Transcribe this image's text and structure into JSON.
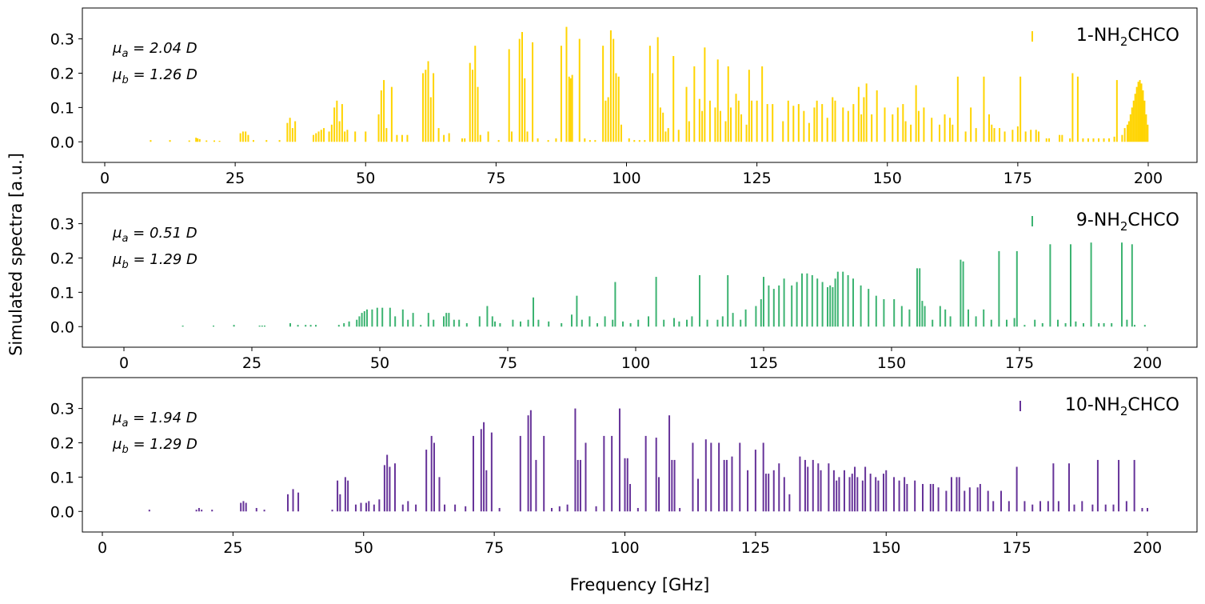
{
  "figure": {
    "ylabel": "Simulated spectra [a.u.]",
    "xlabel": "Frequency [GHz]"
  },
  "chart_data": [
    {
      "type": "bar",
      "name": "panel-1",
      "legend": {
        "prefix": "1-NH",
        "sub": "2",
        "suffix": "CHCO"
      },
      "color": "#FFD400",
      "mu_a": {
        "sym": "μ",
        "sub": "a",
        "value": " = 2.04 D"
      },
      "mu_b": {
        "sym": "μ",
        "sub": "b",
        "value": " = 1.26 D"
      },
      "xlim": [
        -4.5,
        209
      ],
      "ylim": [
        -0.06,
        0.39
      ],
      "xticks": [
        0,
        25,
        50,
        75,
        100,
        125,
        150,
        175,
        200
      ],
      "yticks": [
        0.0,
        0.1,
        0.2,
        0.3
      ],
      "ytick_labels": [
        "0.0",
        "0.1",
        "0.2",
        "0.3"
      ],
      "x": [
        8.8,
        12.5,
        16.2,
        17.5,
        17.8,
        18.2,
        19.5,
        21.0,
        22.0,
        26.0,
        26.5,
        27.0,
        27.5,
        28.5,
        31.0,
        33.5,
        35.0,
        35.5,
        36.0,
        36.5,
        40.0,
        40.5,
        41.0,
        41.5,
        42.0,
        43.0,
        43.5,
        44.0,
        44.5,
        45.0,
        45.5,
        46.0,
        46.5,
        48.0,
        50.0,
        52.5,
        53.0,
        53.5,
        54.0,
        55.0,
        56.0,
        57.0,
        58.0,
        61.0,
        61.5,
        62.0,
        62.5,
        63.0,
        64.0,
        65.0,
        66.0,
        68.5,
        69.0,
        70.0,
        70.5,
        71.0,
        71.5,
        72.0,
        73.5,
        75.5,
        77.5,
        78.0,
        79.5,
        80.0,
        80.5,
        81.0,
        82.0,
        83.0,
        85.0,
        86.5,
        87.5,
        88.5,
        89.0,
        89.3,
        89.6,
        91.0,
        92.0,
        93.0,
        94.0,
        95.5,
        96.0,
        96.5,
        97.0,
        97.5,
        98.0,
        98.5,
        99.0,
        100.5,
        101.5,
        102.5,
        103.5,
        104.5,
        105.0,
        106.0,
        106.5,
        107.0,
        107.5,
        108.0,
        109.0,
        110.0,
        111.5,
        112.0,
        113.0,
        114.0,
        114.5,
        115.0,
        116.0,
        117.0,
        117.5,
        118.0,
        119.0,
        119.5,
        120.0,
        121.0,
        121.5,
        122.0,
        123.0,
        123.5,
        124.0,
        125.0,
        126.0,
        127.0,
        128.0,
        130.0,
        131.0,
        132.0,
        133.0,
        134.0,
        135.0,
        136.0,
        136.5,
        137.5,
        138.5,
        139.5,
        140.0,
        141.5,
        142.5,
        143.5,
        144.5,
        145.0,
        145.5,
        146.0,
        147.0,
        148.0,
        149.5,
        151.0,
        152.0,
        153.0,
        153.5,
        154.5,
        155.5,
        156.0,
        157.0,
        158.5,
        160.0,
        161.0,
        162.0,
        162.5,
        163.5,
        165.0,
        166.0,
        167.0,
        168.5,
        169.5,
        170.0,
        170.5,
        171.5,
        172.5,
        174.0,
        175.0,
        175.5,
        176.5,
        177.5,
        178.5,
        179.0,
        180.5,
        181.0,
        183.0,
        183.5,
        185.0,
        185.5,
        186.5,
        187.5,
        188.5,
        189.5,
        190.5,
        191.5,
        192.5,
        193.5,
        194.0,
        195.0,
        195.5,
        196.0,
        196.3,
        196.6,
        196.9,
        197.2,
        197.5,
        197.8,
        198.1,
        198.4,
        198.7,
        199.0,
        199.3,
        199.6,
        199.9
      ],
      "values": [
        0.005,
        0.005,
        0.004,
        0.012,
        0.01,
        0.008,
        0.004,
        0.004,
        0.003,
        0.025,
        0.03,
        0.03,
        0.02,
        0.005,
        0.005,
        0.005,
        0.055,
        0.07,
        0.04,
        0.06,
        0.02,
        0.025,
        0.03,
        0.035,
        0.04,
        0.03,
        0.05,
        0.1,
        0.12,
        0.06,
        0.11,
        0.03,
        0.035,
        0.03,
        0.03,
        0.08,
        0.15,
        0.18,
        0.04,
        0.16,
        0.02,
        0.02,
        0.02,
        0.2,
        0.21,
        0.235,
        0.13,
        0.2,
        0.04,
        0.02,
        0.025,
        0.01,
        0.01,
        0.23,
        0.21,
        0.28,
        0.16,
        0.02,
        0.03,
        0.005,
        0.27,
        0.03,
        0.3,
        0.32,
        0.185,
        0.03,
        0.29,
        0.01,
        0.005,
        0.01,
        0.28,
        0.335,
        0.19,
        0.185,
        0.195,
        0.3,
        0.01,
        0.005,
        0.005,
        0.28,
        0.12,
        0.13,
        0.325,
        0.3,
        0.2,
        0.19,
        0.05,
        0.01,
        0.005,
        0.005,
        0.005,
        0.28,
        0.2,
        0.305,
        0.1,
        0.085,
        0.03,
        0.04,
        0.25,
        0.035,
        0.16,
        0.06,
        0.22,
        0.125,
        0.09,
        0.275,
        0.12,
        0.1,
        0.24,
        0.09,
        0.06,
        0.22,
        0.1,
        0.14,
        0.12,
        0.08,
        0.05,
        0.21,
        0.12,
        0.12,
        0.22,
        0.11,
        0.11,
        0.06,
        0.12,
        0.105,
        0.11,
        0.09,
        0.055,
        0.1,
        0.12,
        0.11,
        0.07,
        0.13,
        0.12,
        0.1,
        0.09,
        0.11,
        0.16,
        0.08,
        0.13,
        0.17,
        0.08,
        0.15,
        0.1,
        0.08,
        0.1,
        0.11,
        0.06,
        0.05,
        0.165,
        0.09,
        0.1,
        0.07,
        0.05,
        0.08,
        0.07,
        0.05,
        0.19,
        0.03,
        0.1,
        0.04,
        0.19,
        0.08,
        0.05,
        0.04,
        0.04,
        0.03,
        0.035,
        0.045,
        0.19,
        0.03,
        0.035,
        0.035,
        0.03,
        0.01,
        0.01,
        0.02,
        0.02,
        0.01,
        0.2,
        0.19,
        0.01,
        0.01,
        0.01,
        0.01,
        0.01,
        0.01,
        0.015,
        0.18,
        0.02,
        0.04,
        0.05,
        0.06,
        0.08,
        0.1,
        0.12,
        0.14,
        0.16,
        0.175,
        0.18,
        0.17,
        0.15,
        0.12,
        0.08,
        0.05
      ]
    },
    {
      "type": "bar",
      "name": "panel-9",
      "legend": {
        "prefix": "9-NH",
        "sub": "2",
        "suffix": "CHCO"
      },
      "color": "#3CB371",
      "mu_a": {
        "sym": "μ",
        "sub": "a",
        "value": " = 0.51 D"
      },
      "mu_b": {
        "sym": "μ",
        "sub": "b",
        "value": " = 1.29 D"
      },
      "xlim": [
        -4.5,
        209
      ],
      "ylim": [
        -0.06,
        0.39
      ],
      "xticks": [
        0,
        25,
        50,
        75,
        100,
        125,
        150,
        175,
        200
      ],
      "yticks": [
        0.0,
        0.1,
        0.2,
        0.3
      ],
      "ytick_labels": [
        "0.0",
        "0.1",
        "0.2",
        "0.3"
      ],
      "x": [
        11.5,
        17.5,
        21.5,
        26.5,
        27.0,
        27.5,
        32.5,
        34.0,
        35.5,
        36.5,
        37.5,
        42.0,
        43.0,
        44.0,
        45.5,
        46.0,
        46.5,
        47.0,
        47.5,
        48.5,
        49.5,
        50.5,
        52.0,
        53.0,
        54.5,
        55.5,
        56.5,
        58.0,
        59.5,
        60.5,
        62.5,
        63.0,
        63.5,
        64.5,
        65.5,
        67.0,
        69.5,
        71.0,
        72.0,
        72.5,
        73.5,
        76.0,
        77.5,
        79.0,
        80.0,
        81.0,
        83.0,
        85.5,
        87.5,
        88.5,
        89.5,
        91.0,
        92.5,
        94.0,
        95.5,
        96.0,
        97.5,
        99.0,
        100.5,
        102.5,
        104.0,
        105.5,
        107.5,
        108.5,
        110.0,
        111.0,
        112.5,
        114.0,
        116.0,
        117.0,
        118.0,
        119.0,
        120.5,
        121.5,
        123.5,
        124.5,
        125.0,
        126.0,
        127.0,
        128.0,
        129.0,
        130.5,
        131.5,
        132.5,
        133.5,
        134.5,
        135.5,
        136.5,
        137.5,
        138.0,
        138.5,
        139.0,
        139.5,
        140.5,
        141.5,
        142.5,
        144.0,
        145.5,
        147.0,
        148.5,
        150.5,
        152.0,
        153.5,
        155.0,
        155.5,
        156.0,
        156.5,
        158.0,
        159.5,
        160.5,
        161.5,
        163.5,
        164.0,
        165.0,
        166.5,
        168.0,
        169.5,
        171.0,
        172.5,
        174.0,
        174.5,
        176.0,
        178.0,
        179.5,
        181.0,
        182.5,
        184.0,
        185.0,
        186.0,
        187.5,
        189.0,
        190.5,
        191.5,
        193.0,
        195.0,
        196.0,
        197.0,
        197.5,
        199.5
      ],
      "values": [
        0.003,
        0.003,
        0.005,
        0.003,
        0.003,
        0.003,
        0.01,
        0.005,
        0.005,
        0.005,
        0.005,
        0.005,
        0.01,
        0.015,
        0.02,
        0.03,
        0.04,
        0.045,
        0.05,
        0.05,
        0.055,
        0.055,
        0.055,
        0.03,
        0.05,
        0.02,
        0.04,
        0.005,
        0.04,
        0.02,
        0.03,
        0.04,
        0.04,
        0.02,
        0.02,
        0.01,
        0.03,
        0.06,
        0.03,
        0.015,
        0.01,
        0.02,
        0.015,
        0.02,
        0.085,
        0.02,
        0.015,
        0.01,
        0.035,
        0.09,
        0.02,
        0.03,
        0.01,
        0.03,
        0.02,
        0.13,
        0.015,
        0.01,
        0.02,
        0.03,
        0.145,
        0.02,
        0.025,
        0.015,
        0.02,
        0.03,
        0.15,
        0.02,
        0.02,
        0.03,
        0.15,
        0.04,
        0.02,
        0.05,
        0.06,
        0.08,
        0.145,
        0.12,
        0.11,
        0.12,
        0.14,
        0.12,
        0.13,
        0.155,
        0.155,
        0.15,
        0.14,
        0.13,
        0.115,
        0.12,
        0.115,
        0.14,
        0.16,
        0.16,
        0.15,
        0.14,
        0.12,
        0.11,
        0.09,
        0.08,
        0.08,
        0.06,
        0.05,
        0.17,
        0.17,
        0.075,
        0.06,
        0.02,
        0.06,
        0.05,
        0.03,
        0.195,
        0.19,
        0.05,
        0.03,
        0.05,
        0.02,
        0.22,
        0.02,
        0.025,
        0.22,
        0.005,
        0.02,
        0.01,
        0.24,
        0.02,
        0.01,
        0.24,
        0.015,
        0.01,
        0.245,
        0.01,
        0.01,
        0.01,
        0.245,
        0.02,
        0.24,
        0.005,
        0.005
      ]
    },
    {
      "type": "bar",
      "name": "panel-10",
      "legend": {
        "prefix": "10-NH",
        "sub": "2",
        "suffix": "CHCO"
      },
      "color": "#663399",
      "mu_a": {
        "sym": "μ",
        "sub": "a",
        "value": " = 1.94 D"
      },
      "mu_b": {
        "sym": "μ",
        "sub": "b",
        "value": " = 1.29 D"
      },
      "xlim": [
        -4.5,
        209
      ],
      "ylim": [
        -0.06,
        0.39
      ],
      "xticks": [
        0,
        25,
        50,
        75,
        100,
        125,
        150,
        175,
        200
      ],
      "yticks": [
        0.0,
        0.1,
        0.2,
        0.3
      ],
      "ytick_labels": [
        "0.0",
        "0.1",
        "0.2",
        "0.3"
      ],
      "x": [
        9.0,
        18.0,
        18.5,
        19.0,
        21.0,
        26.5,
        27.0,
        27.5,
        29.5,
        31.0,
        35.5,
        36.5,
        37.5,
        44.0,
        45.0,
        45.5,
        46.5,
        47.0,
        48.5,
        49.5,
        50.5,
        51.0,
        52.0,
        53.0,
        54.0,
        54.5,
        55.0,
        56.0,
        57.5,
        58.5,
        60.0,
        62.0,
        63.0,
        63.5,
        64.5,
        65.5,
        67.5,
        69.5,
        71.0,
        72.5,
        73.0,
        73.5,
        74.5,
        76.0,
        80.0,
        81.5,
        82.0,
        83.0,
        84.5,
        86.0,
        87.5,
        89.0,
        90.5,
        91.0,
        91.5,
        92.5,
        94.5,
        96.0,
        97.5,
        99.0,
        100.0,
        100.5,
        101.0,
        102.5,
        104.0,
        106.0,
        106.5,
        108.5,
        109.0,
        109.5,
        110.5,
        113.0,
        114.0,
        115.5,
        116.5,
        118.0,
        119.0,
        119.5,
        120.5,
        122.0,
        123.5,
        125.0,
        126.5,
        127.0,
        127.5,
        128.5,
        129.5,
        130.5,
        131.5,
        133.5,
        134.5,
        135.0,
        136.0,
        137.0,
        137.5,
        139.0,
        140.0,
        140.5,
        141.0,
        142.0,
        143.0,
        143.5,
        144.0,
        144.5,
        145.5,
        146.0,
        147.0,
        148.0,
        148.5,
        149.5,
        150.0,
        151.5,
        152.5,
        153.5,
        154.0,
        155.5,
        157.0,
        158.5,
        159.0,
        160.0,
        161.5,
        162.5,
        163.5,
        164.0,
        165.0,
        166.0,
        167.5,
        168.0,
        169.5,
        170.5,
        172.0,
        173.5,
        175.0,
        176.5,
        178.0,
        179.5,
        181.0,
        182.0,
        183.0,
        185.0,
        186.0,
        187.5,
        189.5,
        190.5,
        192.0,
        193.5,
        194.5,
        196.0,
        197.5,
        199.0,
        200.0
      ],
      "values": [
        0.005,
        0.005,
        0.01,
        0.005,
        0.005,
        0.025,
        0.03,
        0.025,
        0.01,
        0.005,
        0.05,
        0.065,
        0.055,
        0.005,
        0.09,
        0.05,
        0.1,
        0.09,
        0.02,
        0.025,
        0.025,
        0.03,
        0.02,
        0.035,
        0.135,
        0.165,
        0.13,
        0.14,
        0.02,
        0.03,
        0.02,
        0.18,
        0.22,
        0.2,
        0.1,
        0.02,
        0.02,
        0.015,
        0.22,
        0.24,
        0.26,
        0.12,
        0.23,
        0.01,
        0.22,
        0.28,
        0.295,
        0.15,
        0.22,
        0.01,
        0.015,
        0.02,
        0.3,
        0.15,
        0.15,
        0.2,
        0.015,
        0.22,
        0.22,
        0.3,
        0.155,
        0.155,
        0.08,
        0.01,
        0.22,
        0.215,
        0.1,
        0.28,
        0.15,
        0.15,
        0.01,
        0.2,
        0.095,
        0.21,
        0.2,
        0.2,
        0.15,
        0.15,
        0.16,
        0.2,
        0.12,
        0.18,
        0.2,
        0.11,
        0.11,
        0.12,
        0.14,
        0.1,
        0.05,
        0.16,
        0.15,
        0.13,
        0.15,
        0.14,
        0.12,
        0.14,
        0.12,
        0.09,
        0.1,
        0.12,
        0.1,
        0.11,
        0.13,
        0.1,
        0.09,
        0.13,
        0.11,
        0.1,
        0.09,
        0.11,
        0.12,
        0.1,
        0.09,
        0.1,
        0.08,
        0.09,
        0.08,
        0.08,
        0.08,
        0.07,
        0.06,
        0.1,
        0.1,
        0.1,
        0.06,
        0.07,
        0.07,
        0.08,
        0.06,
        0.03,
        0.06,
        0.03,
        0.13,
        0.03,
        0.02,
        0.03,
        0.03,
        0.14,
        0.03,
        0.14,
        0.02,
        0.03,
        0.02,
        0.15,
        0.02,
        0.02,
        0.15,
        0.03,
        0.15,
        0.01,
        0.01
      ]
    }
  ]
}
